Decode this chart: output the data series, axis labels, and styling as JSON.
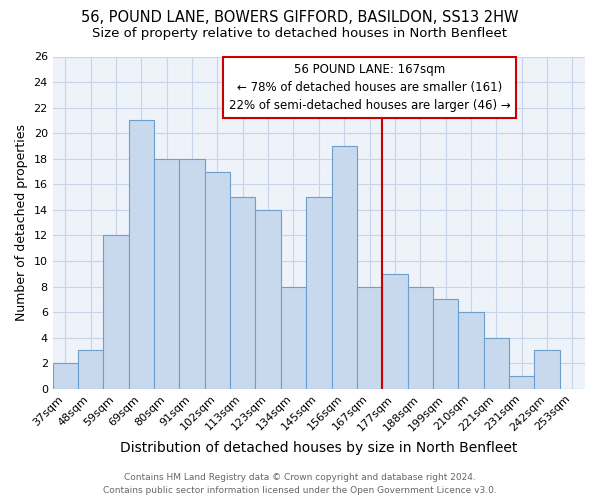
{
  "title": "56, POUND LANE, BOWERS GIFFORD, BASILDON, SS13 2HW",
  "subtitle": "Size of property relative to detached houses in North Benfleet",
  "xlabel": "Distribution of detached houses by size in North Benfleet",
  "ylabel": "Number of detached properties",
  "categories": [
    "37sqm",
    "48sqm",
    "59sqm",
    "69sqm",
    "80sqm",
    "91sqm",
    "102sqm",
    "113sqm",
    "123sqm",
    "134sqm",
    "145sqm",
    "156sqm",
    "167sqm",
    "177sqm",
    "188sqm",
    "199sqm",
    "210sqm",
    "221sqm",
    "231sqm",
    "242sqm",
    "253sqm"
  ],
  "values": [
    2,
    3,
    12,
    21,
    18,
    18,
    17,
    15,
    14,
    8,
    15,
    19,
    8,
    9,
    8,
    7,
    6,
    4,
    1,
    3,
    0
  ],
  "bar_color": "#c9d9ed",
  "bar_edge_color": "#6a9fd0",
  "highlight_index": 12,
  "highlight_line_color": "#cc0000",
  "annotation_line1": "56 POUND LANE: 167sqm",
  "annotation_line2": "← 78% of detached houses are smaller (161)",
  "annotation_line3": "22% of semi-detached houses are larger (46) →",
  "ylim": [
    0,
    26
  ],
  "yticks": [
    0,
    2,
    4,
    6,
    8,
    10,
    12,
    14,
    16,
    18,
    20,
    22,
    24,
    26
  ],
  "grid_color": "#c8d4e8",
  "background_color": "#eef2f9",
  "footer_line1": "Contains HM Land Registry data © Crown copyright and database right 2024.",
  "footer_line2": "Contains public sector information licensed under the Open Government Licence v3.0.",
  "title_fontsize": 10.5,
  "subtitle_fontsize": 9.5,
  "tick_fontsize": 8,
  "ylabel_fontsize": 9,
  "xlabel_fontsize": 10,
  "footer_fontsize": 6.5,
  "annotation_fontsize": 8.5
}
